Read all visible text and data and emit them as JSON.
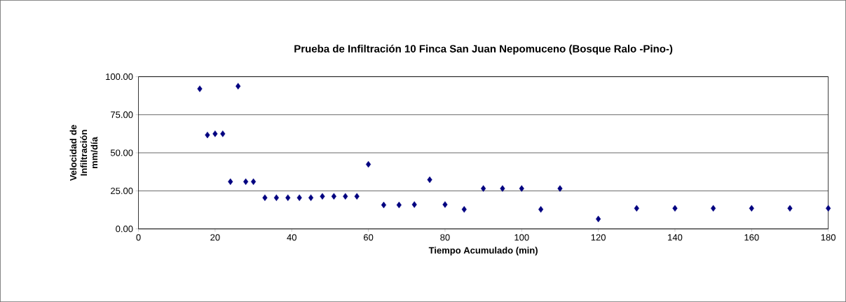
{
  "chart_data": {
    "type": "scatter",
    "title": "Prueba de Infiltración 10 Finca San Juan Nepomuceno (Bosque Ralo -Pino-)",
    "xlabel": "Tiempo Acumulado (min)",
    "ylabel": "Velocidad de Infiltración mm/día",
    "x": [
      16,
      18,
      20,
      22,
      24,
      26,
      28,
      30,
      33,
      36,
      39,
      42,
      45,
      48,
      51,
      54,
      57,
      60,
      64,
      68,
      72,
      76,
      80,
      85,
      90,
      95,
      100,
      105,
      110,
      120,
      130,
      140,
      150,
      160,
      170,
      180
    ],
    "values": [
      92,
      61.7,
      62.5,
      62.5,
      31,
      93.7,
      31,
      31,
      20.5,
      20.5,
      20.5,
      20.5,
      20.5,
      21.4,
      21.4,
      21.4,
      21.4,
      42.4,
      15.7,
      15.7,
      16,
      32.3,
      16,
      12.8,
      26.5,
      26.5,
      26.5,
      12.8,
      26.5,
      6.5,
      13.5,
      13.5,
      13.5,
      13.5,
      13.5,
      13.5
    ],
    "color": "#000080",
    "marker": "diamond",
    "grid": "y",
    "xlim": [
      0,
      180
    ],
    "xticks": [
      0,
      20,
      40,
      60,
      80,
      100,
      120,
      140,
      160,
      180
    ],
    "ylim": [
      0,
      100
    ],
    "yticks": [
      {
        "value": 0,
        "label": "0.00"
      },
      {
        "value": 25,
        "label": "25.00"
      },
      {
        "value": 50,
        "label": "50.00"
      },
      {
        "value": 75,
        "label": "75.00"
      },
      {
        "value": 100,
        "label": "100.00"
      }
    ]
  }
}
